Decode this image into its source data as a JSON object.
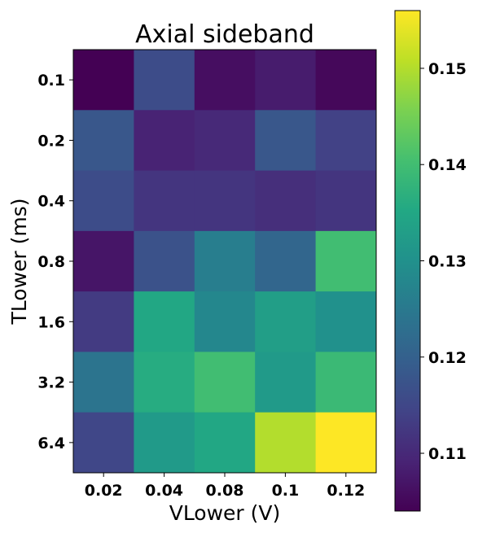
{
  "chart_data": {
    "type": "heatmap",
    "title": "Axial sideband",
    "xlabel": "VLower (V)",
    "ylabel": "TLower (ms)",
    "x_categories": [
      "0.02",
      "0.04",
      "0.08",
      "0.1",
      "0.12"
    ],
    "y_categories": [
      "0.1",
      "0.2",
      "0.4",
      "0.8",
      "1.6",
      "3.2",
      "6.4"
    ],
    "values": [
      [
        0.104,
        0.116,
        0.106,
        0.108,
        0.105
      ],
      [
        0.118,
        0.109,
        0.11,
        0.118,
        0.114
      ],
      [
        0.116,
        0.112,
        0.112,
        0.111,
        0.112
      ],
      [
        0.107,
        0.117,
        0.126,
        0.121,
        0.14
      ],
      [
        0.113,
        0.135,
        0.128,
        0.133,
        0.13
      ],
      [
        0.124,
        0.136,
        0.14,
        0.132,
        0.139
      ],
      [
        0.115,
        0.132,
        0.135,
        0.15,
        0.156
      ]
    ],
    "colormap": "viridis",
    "colorbar": {
      "range": [
        0.104,
        0.156
      ],
      "ticks": [
        0.11,
        0.12,
        0.13,
        0.14,
        0.15
      ],
      "tick_labels": [
        "0.11",
        "0.12",
        "0.13",
        "0.14",
        "0.15"
      ]
    },
    "grid": false
  }
}
